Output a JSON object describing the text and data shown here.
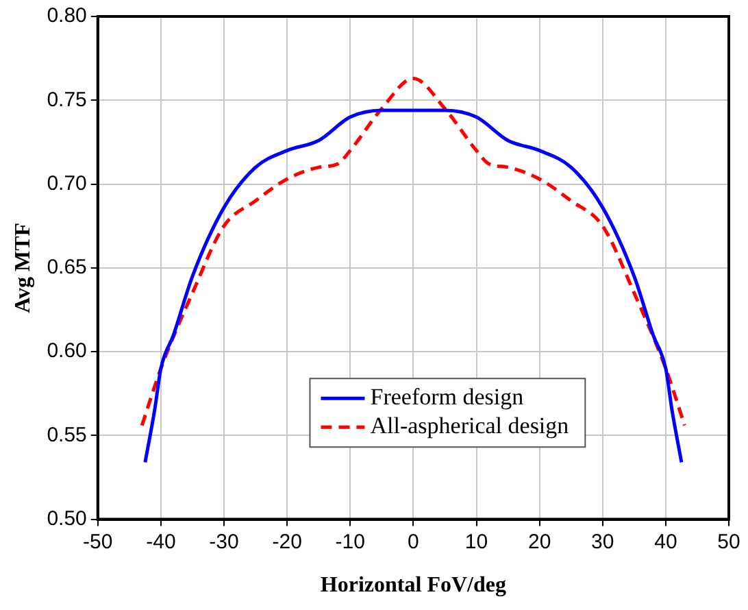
{
  "chart_data": {
    "type": "line",
    "xlabel": "Horizontal FoV/deg",
    "ylabel": "Avg MTF",
    "xlim": [
      -50,
      50
    ],
    "xticks": [
      -50,
      -40,
      -30,
      -20,
      -10,
      0,
      10,
      20,
      30,
      40,
      50
    ],
    "ylim": [
      0.5,
      0.8
    ],
    "yticks": [
      {
        "value": 0.5,
        "label": "0.50"
      },
      0.55,
      {
        "value": 0.6,
        "label": "0.60"
      },
      0.65,
      {
        "value": 0.7,
        "label": "0.70"
      },
      0.75,
      {
        "value": 0.8,
        "label": "0.80"
      }
    ],
    "grid": true,
    "legend": "bottom",
    "marker": "none",
    "series": [
      {
        "name": "Freeform design",
        "color": "#0000ff",
        "line_style": "solid",
        "x": [
          -42.5,
          -41,
          -40,
          -38,
          -35,
          -30,
          -25,
          -20,
          -15,
          -10,
          -5,
          0,
          5,
          10,
          15,
          20,
          25,
          30,
          35,
          38,
          40,
          41,
          42.5
        ],
        "values": [
          0.534,
          0.565,
          0.59,
          0.61,
          0.645,
          0.686,
          0.71,
          0.72,
          0.726,
          0.74,
          0.744,
          0.744,
          0.744,
          0.74,
          0.726,
          0.72,
          0.71,
          0.686,
          0.645,
          0.61,
          0.59,
          0.565,
          0.534
        ]
      },
      {
        "name": "All-aspherical design",
        "color": "#ff0000",
        "line_style": "dashed",
        "x": [
          -43,
          -40,
          -35,
          -30,
          -25,
          -20,
          -15,
          -12,
          -10,
          -5,
          0,
          5,
          10,
          12,
          15,
          20,
          25,
          30,
          35,
          40,
          43
        ],
        "values": [
          0.556,
          0.59,
          0.635,
          0.675,
          0.69,
          0.703,
          0.71,
          0.712,
          0.72,
          0.745,
          0.763,
          0.745,
          0.72,
          0.712,
          0.71,
          0.703,
          0.69,
          0.675,
          0.635,
          0.59,
          0.556
        ]
      }
    ]
  }
}
